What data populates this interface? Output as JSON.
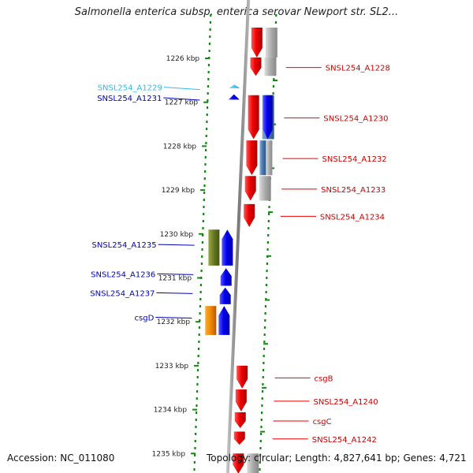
{
  "title": "Salmonella enterica subsp. enterica serovar Newport str. SL2...",
  "footer": {
    "accession": "Accession: NC_011080",
    "topology": "Topology: circular; Length: 4,827,641 bp; Genes: 4,721"
  },
  "colors": {
    "forward_gene": "#ee0000",
    "reverse_gene": "#0000ee",
    "reverse_gene_light": "#33bbee",
    "gc_gray": "#aaaaaa",
    "gc_steelblue": "#4477aa",
    "gc_olive": "#667722",
    "gc_orange": "#ee8800",
    "tick_green": "#118811",
    "backbone": "#888888"
  },
  "map": {
    "ticks": [
      {
        "label": "1226 kbp",
        "kbp": 1226
      },
      {
        "label": "1227 kbp",
        "kbp": 1227
      },
      {
        "label": "1228 kbp",
        "kbp": 1228
      },
      {
        "label": "1229 kbp",
        "kbp": 1229
      },
      {
        "label": "1230 kbp",
        "kbp": 1230
      },
      {
        "label": "1231 kbp",
        "kbp": 1231
      },
      {
        "label": "1232 kbp",
        "kbp": 1232
      },
      {
        "label": "1233 kbp",
        "kbp": 1233
      },
      {
        "label": "1234 kbp",
        "kbp": 1234
      },
      {
        "label": "1235 kbp",
        "kbp": 1235
      }
    ],
    "forward_genes": [
      {
        "label": "",
        "start": 1225.3,
        "end": 1225.98,
        "gc": "gray"
      },
      {
        "label": "SNSL254_A1228",
        "start": 1225.98,
        "end": 1226.4,
        "gc": "gray"
      },
      {
        "label": "SNSL254_A1230",
        "start": 1226.84,
        "end": 1227.84,
        "gc": "steelblue"
      },
      {
        "label": "SNSL254_A1232",
        "start": 1227.87,
        "end": 1228.66,
        "gc": "mixed"
      },
      {
        "label": "SNSL254_A1233",
        "start": 1228.68,
        "end": 1229.24,
        "gc": "gray"
      },
      {
        "label": "SNSL254_A1234",
        "start": 1229.32,
        "end": 1229.84,
        "gc": ""
      },
      {
        "label": "csgB",
        "start": 1233.0,
        "end": 1233.52,
        "gc": ""
      },
      {
        "label": "SNSL254_A1240",
        "start": 1233.54,
        "end": 1234.04,
        "gc": ""
      },
      {
        "label": "csgC",
        "start": 1234.06,
        "end": 1234.42,
        "gc": ""
      },
      {
        "label": "SNSL254_A1242",
        "start": 1234.5,
        "end": 1234.8,
        "gc": ""
      },
      {
        "label": "",
        "start": 1235.0,
        "end": 1235.46,
        "gc": "gray"
      }
    ],
    "reverse_genes": [
      {
        "label": "SNSL254_A1229",
        "start": 1226.6,
        "end": 1226.68,
        "color": "light",
        "gc": ""
      },
      {
        "label": "SNSL254_A1231",
        "start": 1226.82,
        "end": 1226.94,
        "color": "blue",
        "gc": ""
      },
      {
        "label": "SNSL254_A1235",
        "start": 1229.9,
        "end": 1230.72,
        "color": "blue",
        "gc": "olive"
      },
      {
        "label": "SNSL254_A1236",
        "start": 1230.78,
        "end": 1231.18,
        "color": "blue",
        "gc": ""
      },
      {
        "label": "SNSL254_A1237",
        "start": 1231.22,
        "end": 1231.6,
        "color": "blue",
        "gc": ""
      },
      {
        "label": "csgD",
        "start": 1231.64,
        "end": 1232.3,
        "color": "blue",
        "gc": "orange"
      }
    ]
  }
}
